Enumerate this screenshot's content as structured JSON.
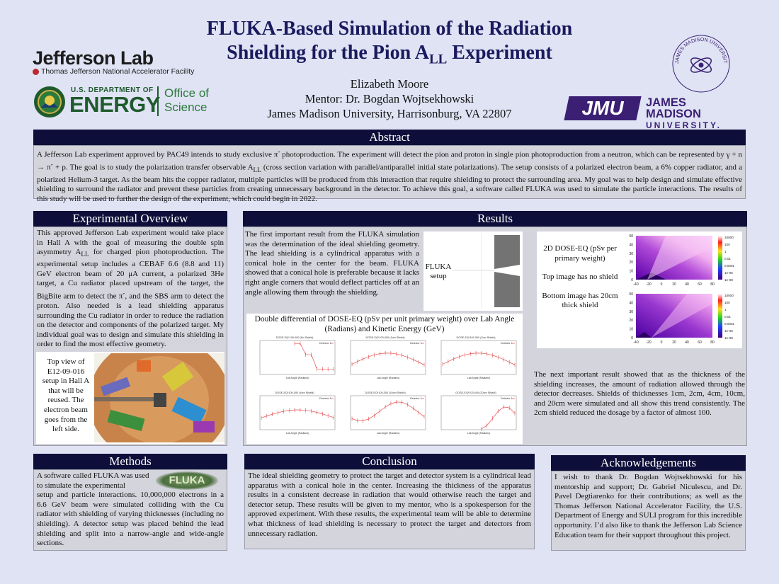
{
  "poster": {
    "title_line1": "FLUKA-Based Simulation of the Radiation",
    "title_line2_pre": "Shielding for the Pion A",
    "title_line2_sub": "LL",
    "title_line2_post": " Experiment",
    "author": "Elizabeth Moore",
    "mentor": "Mentor: Dr. Bogdan Wojtsekhowski",
    "affiliation": "James Madison University, Harrisonburg, VA 22807"
  },
  "logos": {
    "jlab_name": "Jefferson Lab",
    "jlab_sub": "Thomas Jefferson National Accelerator Facility",
    "doe_line1": "U.S. DEPARTMENT OF",
    "doe_line2": "ENERGY",
    "doe_office1": "Office of",
    "doe_office2": "Science",
    "jmu_short": "JMU",
    "jmu_name1": "JAMES MADISON",
    "jmu_name2": "UNIVERSITY.",
    "jmu_seal_text": "JAMES MADISON UNIVERSITY PHYSICS AND ASTRONOMY"
  },
  "abstract": {
    "heading": "Abstract",
    "p_a": "A Jefferson Lab experiment approved by PAC49 intends to study exclusive π",
    "p_a_sup": "-",
    "p_b": " photoproduction. The experiment will detect the pion and proton in single pion photoproduction from a neutron, which can be represented by γ + n → π",
    "p_b_sup": "-",
    "p_c": " + p. The goal is to study the polarization transfer observable A",
    "p_c_sub": "LL",
    "p_d": " (cross section variation with parallel/antiparallel initial state polarizations). The setup consists of a polarized electron beam, a 6% copper radiator, and a polarized Helium-3 target. As the beam hits the copper radiator, multiple particles will be produced from this interaction that require shielding to protect the surrounding area. My goal was to help design and simulate effective shielding to surround the radiator and prevent these particles from creating unnecessary background in the detector. To achieve this goal, a software called FLUKA was used to simulate the particle interactions. The results of this study will be used to further the design of the experiment, which could begin in 2022."
  },
  "overview": {
    "heading": "Experimental Overview",
    "p_a": "This approved Jefferson Lab experiment would take place in Hall A with the goal of measuring the double spin asymmetry A",
    "p_a_sub": "LL",
    "p_b": " for charged pion photoproduction. The experimental setup includes a CEBAF 6.6 (8.8 and 11) GeV electron beam of 20 μA current, a polarized 3He target, a Cu radiator placed upstream of the target, the BigBite arm to detect the π",
    "p_b_sup": "-",
    "p_c": ", and the SBS arm to detect the proton. Also needed is a lead shielding apparatus surrounding the Cu radiator in order to reduce the radiation on the detector and components of the polarized target. My individual goal was to design and simulate this shielding in order to find the most effective geometry.",
    "caption": "Top view of E12-09-016 setup in Hall A that will be reused. The electron beam goes from the left side."
  },
  "methods": {
    "heading": "Methods",
    "logo_text": "FLUKA",
    "p1": "A software called FLUKA was used to simulate the experimental",
    "p2": "setup and particle interactions. 10,000,000 electrons in a 6.6 GeV beam were simulated colliding with the Cu radiator with shielding of varying thicknesses (including no shielding). A detector setup was placed behind the lead shielding and split into a narrow-angle and wide-angle sections."
  },
  "results": {
    "heading": "Results",
    "p1": "The first important result from the FLUKA simulation was the determination of the ideal shielding geometry. The lead shielding is a cylindrical apparatus with a conical hole in the center for the beam. FLUKA showed that a conical hole is preferable because it lacks right angle corners that would deflect particles off at an angle allowing them through the shielding.",
    "fluka_setup_label": "FLUKA setup",
    "dose_label": "2D DOSE-EQ (pSv per primary weight)",
    "top_label": "Top image has no shield",
    "bottom_label": "Bottom image has 20cm thick shield",
    "double_diff_title": "Double differential of DOSE-EQ (pSv per unit primary weight) over Lab Angle (Radians) and Kinetic Energy (GeV)",
    "p2": "The next important result showed that as the thickness of the shielding increases, the amount of radiation allowed through the detector decreases. Shields of thicknesses 1cm, 2cm, 4cm, 10cm, and 20cm were simulated and all show this trend consistently. The 2cm shield reduced the dosage by a factor of almost 100."
  },
  "heatmap": {
    "x_ticks": [
      "-40",
      "-20",
      "0",
      "20",
      "40",
      "60",
      "80"
    ],
    "y_ticks": [
      "50",
      "40",
      "30",
      "20",
      "10",
      "0"
    ],
    "scale_labels": [
      "10000",
      "100",
      "1",
      "0.01",
      "0.0001",
      "1e-06",
      "1e-08"
    ]
  },
  "small_plots": [
    {
      "title": "DOSE-EQ*100,000 (No Shield)",
      "legend": "Detector 1",
      "xlabel": "Lab Angle (Radians)"
    },
    {
      "title": "DOSE-EQ*100,000 (1cm Shield)",
      "legend": "Detector 1",
      "xlabel": "Lab Angle (Radians)"
    },
    {
      "title": "DOSE-EQ*100,000 (2cm Shield)",
      "legend": "Detector 1",
      "xlabel": "Lab Angle (Radians)"
    },
    {
      "title": "DOSE-EQ*100,000 (4cm Shield)",
      "legend": "Detector 1",
      "xlabel": "Lab Angle (Radians)"
    },
    {
      "title": "DOSE-EQ*100,000 (10cm Shield)",
      "legend": "Detector 1",
      "xlabel": "Lab Angle (Radians)"
    },
    {
      "title": "DOSE-EQ*100,000 (20cm Shield)",
      "legend": "Detector 1",
      "xlabel": "Lab Angle (Radians)"
    }
  ],
  "conclusion": {
    "heading": "Conclusion",
    "p": "The ideal shielding geometry to protect the target and detector system is a cylindrical lead apparatus with a conical hole in the center. Increasing the thickness of the apparatus results in a consistent decrease in radiation that would otherwise reach the target and detector setup. These results will be given to my mentor, who is a spokesperson for the approved experiment. With these results, the experimental team will be able to determine what thickness of lead shielding is necessary to protect the target and detectors from unnecessary radiation."
  },
  "acknowledgements": {
    "heading": "Acknowledgements",
    "p": "I wish to thank Dr. Bogdan Wojtsekhowski for his mentorship and support; Dr. Gabriel Niculescu, and Dr. Pavel Degtiarenko for their contributions; as well as the Thomas Jefferson National Accelerator Facility, the U.S. Department of Energy and SULI program for this incredible opportunity. I’d also like to thank the Jefferson Lab Science Education team for their support throughout this project."
  },
  "colors": {
    "section_header": "#0d0f3a",
    "section_body": "#d4d4dc",
    "background": "#dfe3f4",
    "title": "#1a1a5e",
    "jmu_purple": "#3b1f73"
  }
}
